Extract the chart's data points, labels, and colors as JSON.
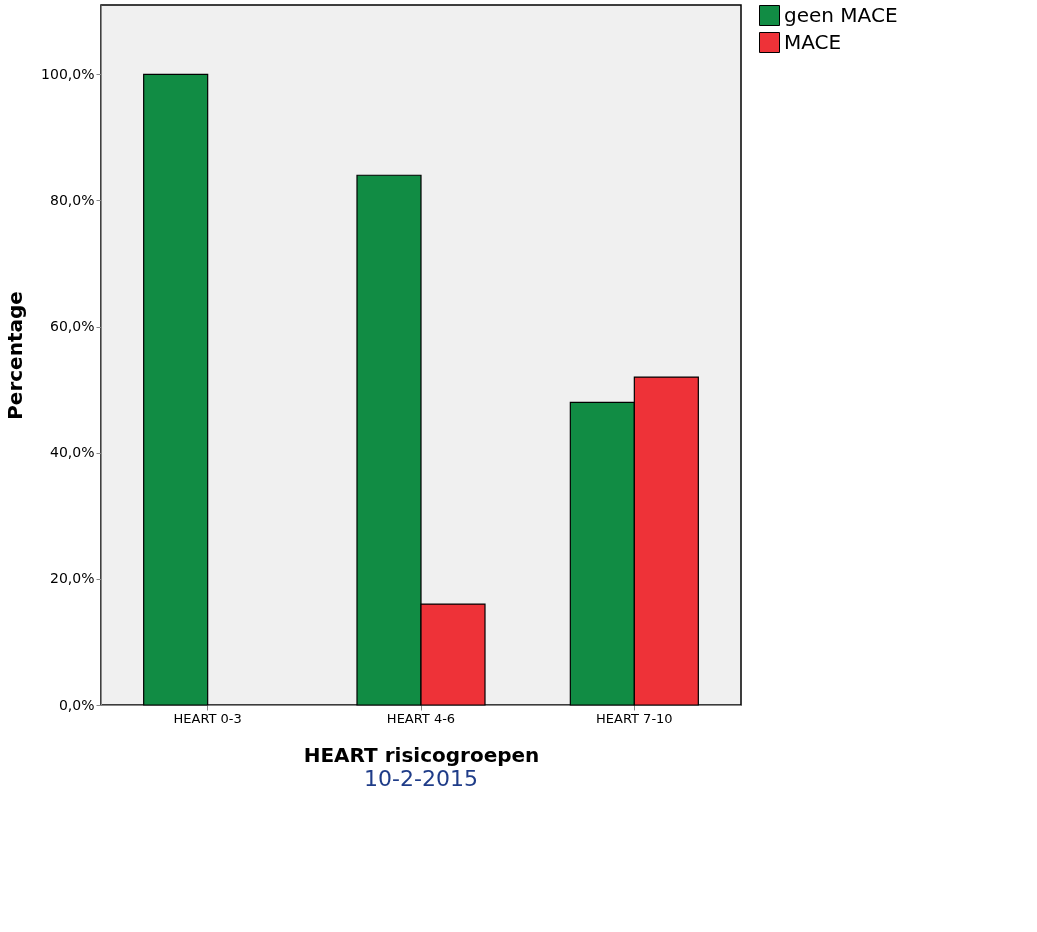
{
  "chart_data": {
    "type": "bar",
    "xlabel": "HEART risicogroepen",
    "ylabel": "Percentage",
    "categories": [
      "HEART 0-3",
      "HEART 4-6",
      "HEART 7-10"
    ],
    "series": [
      {
        "name": "geen MACE",
        "color": "#118c44",
        "values": [
          100,
          84,
          48
        ]
      },
      {
        "name": "MACE",
        "color": "#ee3238",
        "values": [
          null,
          16,
          52
        ]
      }
    ],
    "ylim": [
      0,
      111
    ],
    "yticks": [
      {
        "value": 0,
        "label": "0,0%"
      },
      {
        "value": 20,
        "label": "20,0%"
      },
      {
        "value": 40,
        "label": "40,0%"
      },
      {
        "value": 60,
        "label": "60,0%"
      },
      {
        "value": 80,
        "label": "80,0%"
      },
      {
        "value": 100,
        "label": "100,0%"
      }
    ],
    "legend": "top right",
    "annotations": [
      "10-2-2015"
    ]
  }
}
